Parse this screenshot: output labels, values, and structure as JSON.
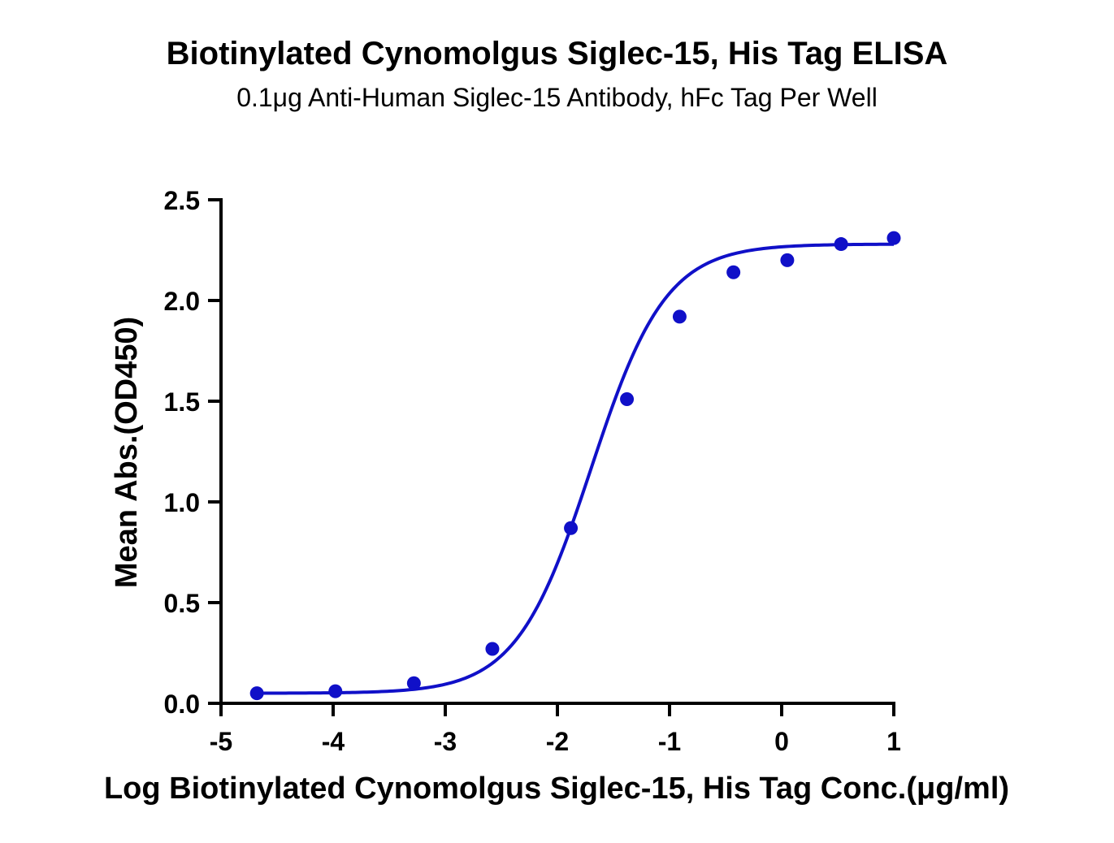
{
  "chart_data": {
    "type": "scatter",
    "title": "Biotinylated Cynomolgus Siglec-15, His Tag ELISA",
    "subtitle": "0.1μg Anti-Human Siglec-15 Antibody, hFc Tag Per Well",
    "xlabel": "Log Biotinylated Cynomolgus Siglec-15, His Tag Conc.(μg/ml)",
    "ylabel": "Mean Abs.(OD450)",
    "xlim": [
      -5,
      1
    ],
    "ylim": [
      0,
      2.5
    ],
    "x_ticks": [
      "-5",
      "-4",
      "-3",
      "-2",
      "-1",
      "0",
      "1"
    ],
    "y_ticks": [
      "0.0",
      "0.5",
      "1.0",
      "1.5",
      "2.0",
      "2.5"
    ],
    "grid": false,
    "color": "#1010c8",
    "series": [
      {
        "points": [
          {
            "x": -4.68,
            "y": 0.05
          },
          {
            "x": -3.98,
            "y": 0.06
          },
          {
            "x": -3.28,
            "y": 0.1
          },
          {
            "x": -2.58,
            "y": 0.27
          },
          {
            "x": -1.88,
            "y": 0.87
          },
          {
            "x": -1.38,
            "y": 1.51
          },
          {
            "x": -0.91,
            "y": 1.92
          },
          {
            "x": -0.43,
            "y": 2.14
          },
          {
            "x": 0.05,
            "y": 2.2
          },
          {
            "x": 0.53,
            "y": 2.28
          },
          {
            "x": 1.0,
            "y": 2.31
          }
        ]
      }
    ],
    "fit_curve": {
      "model": "4PL",
      "bottom": 0.05,
      "top": 2.28,
      "log_ec50": -1.7,
      "hill_slope": 1.3
    }
  }
}
